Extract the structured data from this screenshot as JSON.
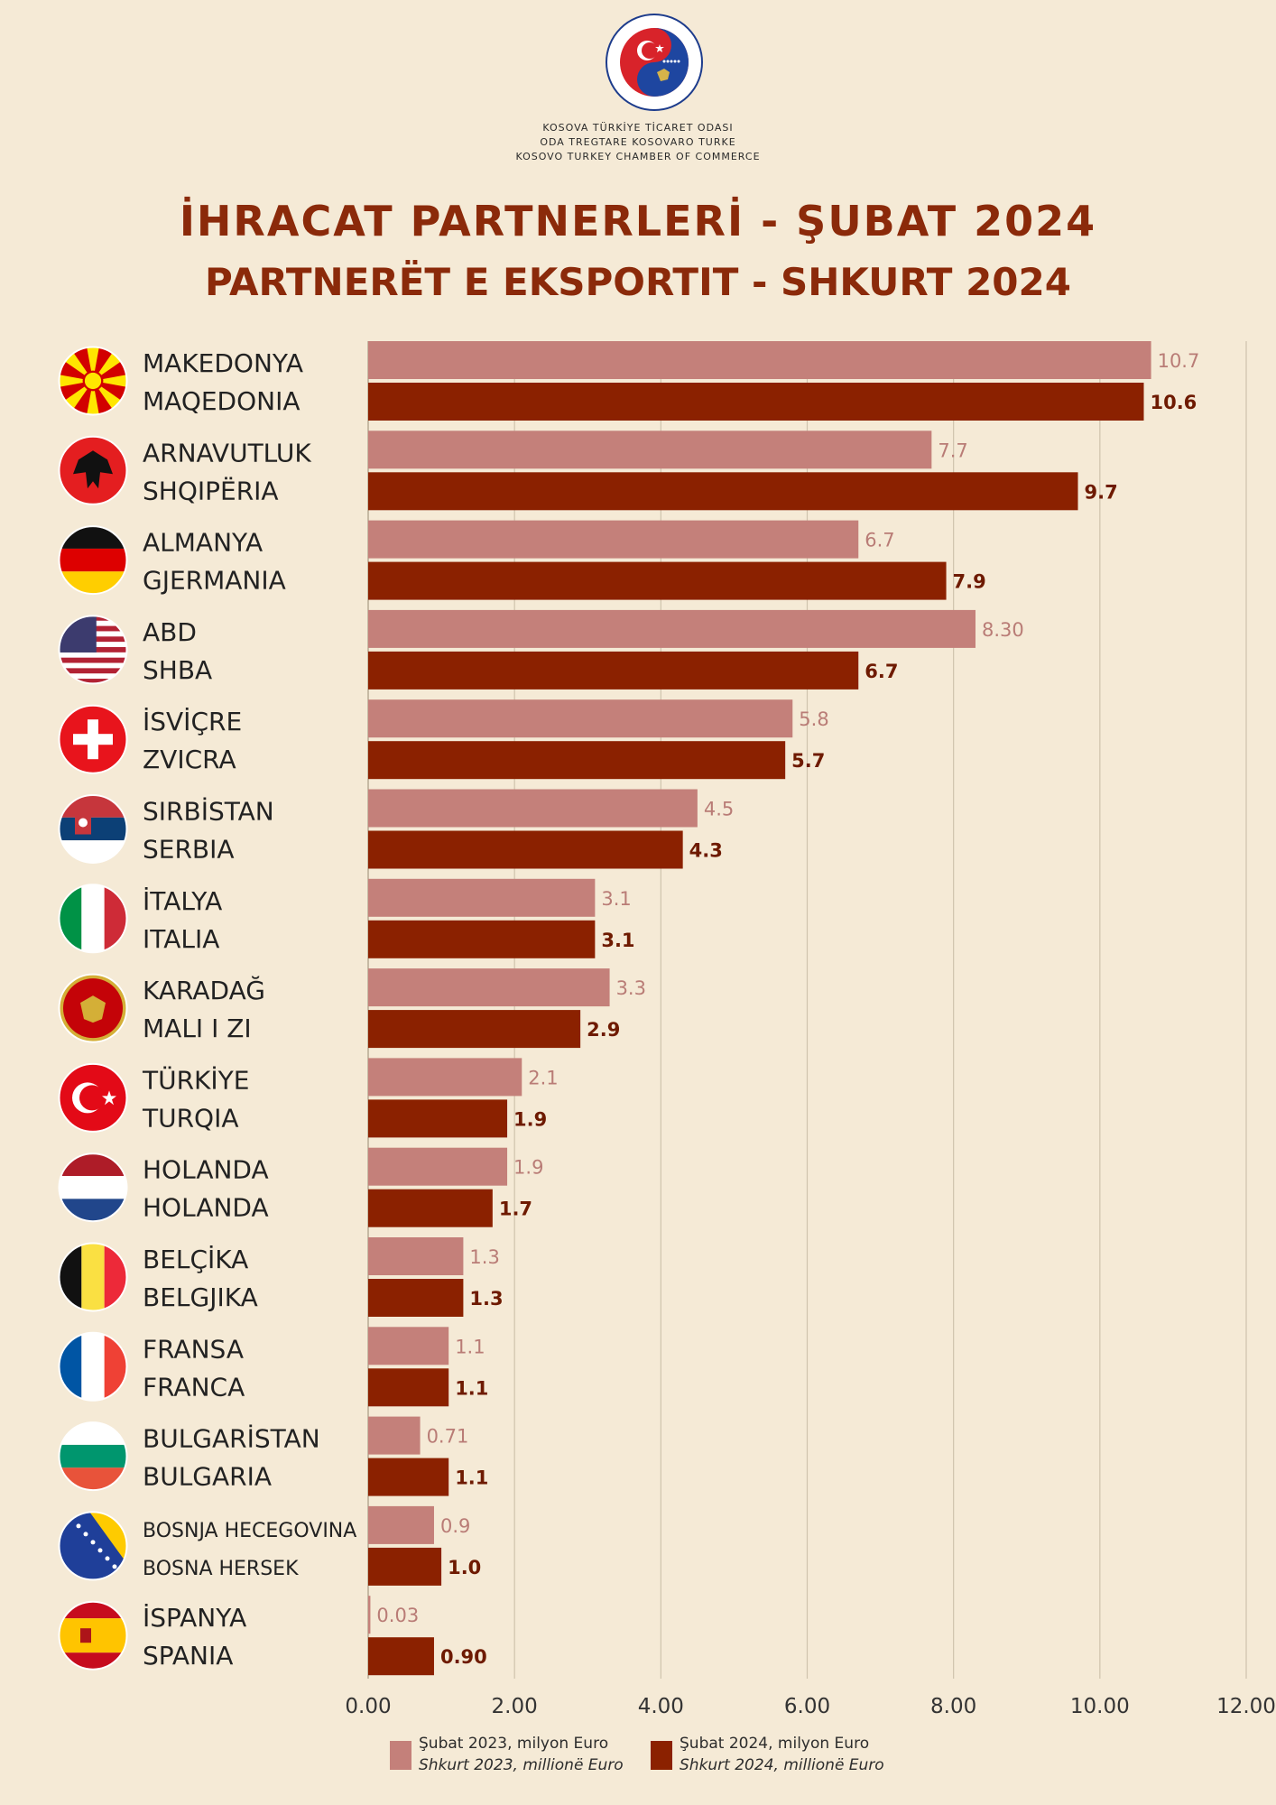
{
  "header": {
    "org_lines": [
      "KOSOVA TÜRKİYE TİCARET ODASI",
      "ODA TREGTARE KOSOVARO TURKE",
      "KOSOVO TURKEY CHAMBER OF COMMERCE"
    ],
    "logo_text": "ODA TREGTARE KOSOVARO TURKE • KOSOVA TÜRKİYE TİCARET ODASI",
    "title_tr": "İHRACAT PARTNERLERİ - ŞUBAT 2024",
    "title_sq": "PARTNERËT E EKSPORTIT - SHKURT 2024"
  },
  "colors": {
    "background": "#f5ead6",
    "title": "#8b2a0a",
    "series_2023": "#c4807a",
    "series_2024": "#8b2100",
    "gridline": "#cfc3ad"
  },
  "chart_data": {
    "type": "bar",
    "orientation": "horizontal",
    "categories": [
      {
        "name_tr": "MAKEDONYA",
        "name_sq": "MAQEDONIA",
        "flag": "north-macedonia-flag-icon"
      },
      {
        "name_tr": "ARNAVUTLUK",
        "name_sq": "SHQIPËRIA",
        "flag": "albania-flag-icon"
      },
      {
        "name_tr": "ALMANYA",
        "name_sq": "GJERMANIA",
        "flag": "germany-flag-icon"
      },
      {
        "name_tr": "ABD",
        "name_sq": "SHBA",
        "flag": "usa-flag-icon"
      },
      {
        "name_tr": "İSVİÇRE",
        "name_sq": "ZVICRA",
        "flag": "switzerland-flag-icon"
      },
      {
        "name_tr": "SIRBİSTAN",
        "name_sq": "SERBIA",
        "flag": "serbia-flag-icon"
      },
      {
        "name_tr": "İTALYA",
        "name_sq": "ITALIA",
        "flag": "italy-flag-icon"
      },
      {
        "name_tr": "KARADAĞ",
        "name_sq": "MALI I ZI",
        "flag": "montenegro-flag-icon"
      },
      {
        "name_tr": "TÜRKİYE",
        "name_sq": "TURQIA",
        "flag": "turkey-flag-icon"
      },
      {
        "name_tr": "HOLANDA",
        "name_sq": "HOLANDA",
        "flag": "netherlands-flag-icon"
      },
      {
        "name_tr": "BELÇİKA",
        "name_sq": "BELGJIKA",
        "flag": "belgium-flag-icon"
      },
      {
        "name_tr": "FRANSA",
        "name_sq": "FRANCA",
        "flag": "france-flag-icon"
      },
      {
        "name_tr": "BULGARİSTAN",
        "name_sq": "BULGARIA",
        "flag": "bulgaria-flag-icon"
      },
      {
        "name_tr": "BOSNJA HECEGOVINA",
        "name_sq": "BOSNA HERSEK",
        "flag": "bosnia-flag-icon"
      },
      {
        "name_tr": "İSPANYA",
        "name_sq": "SPANIA",
        "flag": "spain-flag-icon"
      }
    ],
    "series": [
      {
        "name": "Şubat 2023, milyon Euro",
        "name_alt": "Shkurt 2023, millionë Euro",
        "values": [
          10.7,
          7.7,
          6.7,
          8.3,
          5.8,
          4.5,
          3.1,
          3.3,
          2.1,
          1.9,
          1.3,
          1.1,
          0.71,
          0.9,
          0.03
        ],
        "labels": [
          "10.7",
          "7.7",
          "6.7",
          "8.30",
          "5.8",
          "4.5",
          "3.1",
          "3.3",
          "2.1",
          "1.9",
          "1.3",
          "1.1",
          "0.71",
          "0.9",
          "0.03"
        ]
      },
      {
        "name": "Şubat 2024, milyon Euro",
        "name_alt": "Shkurt 2024, millionë Euro",
        "values": [
          10.6,
          9.7,
          7.9,
          6.7,
          5.7,
          4.3,
          3.1,
          2.9,
          1.9,
          1.7,
          1.3,
          1.1,
          1.1,
          1.0,
          0.9
        ],
        "labels": [
          "10.6",
          "9.7",
          "7.9",
          "6.7",
          "5.7",
          "4.3",
          "3.1",
          "2.9",
          "1.9",
          "1.7",
          "1.3",
          "1.1",
          "1.1",
          "1.0",
          "0.90"
        ]
      }
    ],
    "xlim": [
      0,
      12
    ],
    "x_ticks": [
      "0.00",
      "2.00",
      "4.00",
      "6.00",
      "8.00",
      "10.00",
      "12.00"
    ],
    "grid": true,
    "legend_position": "bottom"
  }
}
